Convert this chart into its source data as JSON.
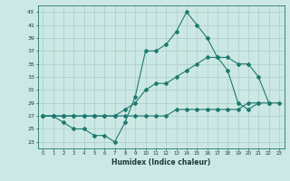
{
  "title": "",
  "xlabel": "Humidex (Indice chaleur)",
  "bg_color": "#cce8e4",
  "grid_color": "#aaccca",
  "line_color": "#1e7a6e",
  "xlim": [
    -0.5,
    23.5
  ],
  "ylim": [
    22,
    44
  ],
  "xticks": [
    0,
    1,
    2,
    3,
    4,
    5,
    6,
    7,
    8,
    9,
    10,
    11,
    12,
    13,
    14,
    15,
    16,
    17,
    18,
    19,
    20,
    21,
    22,
    23
  ],
  "ytick_vals": [
    23,
    25,
    27,
    29,
    31,
    33,
    35,
    37,
    39,
    41,
    43
  ],
  "line1_x": [
    0,
    1,
    2,
    3,
    4,
    5,
    6,
    7,
    8,
    9,
    10,
    11,
    12,
    13,
    14,
    15,
    16,
    17,
    18,
    19,
    20,
    21
  ],
  "line1_y": [
    27,
    27,
    26,
    25,
    25,
    24,
    24,
    23,
    26,
    30,
    37,
    37,
    38,
    40,
    43,
    41,
    39,
    36,
    34,
    29,
    28,
    29
  ],
  "line2_x": [
    0,
    1,
    2,
    3,
    4,
    5,
    6,
    7,
    8,
    9,
    10,
    11,
    12,
    13,
    14,
    15,
    16,
    17,
    18,
    19,
    20,
    21,
    22
  ],
  "line2_y": [
    27,
    27,
    27,
    27,
    27,
    27,
    27,
    27,
    28,
    29,
    31,
    32,
    32,
    33,
    34,
    35,
    36,
    36,
    36,
    35,
    35,
    33,
    29
  ],
  "line3_x": [
    0,
    1,
    2,
    3,
    4,
    5,
    6,
    7,
    8,
    9,
    10,
    11,
    12,
    13,
    14,
    15,
    16,
    17,
    18,
    19,
    20,
    21,
    22,
    23
  ],
  "line3_y": [
    27,
    27,
    27,
    27,
    27,
    27,
    27,
    27,
    27,
    27,
    27,
    27,
    27,
    28,
    28,
    28,
    28,
    28,
    28,
    28,
    29,
    29,
    29,
    29
  ]
}
